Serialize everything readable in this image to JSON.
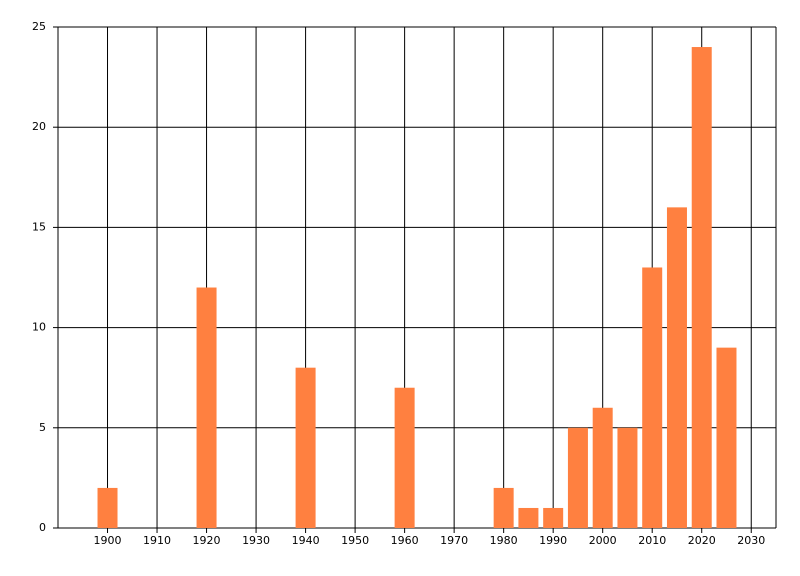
{
  "chart_data": {
    "type": "bar",
    "x": [
      1900,
      1920,
      1940,
      1960,
      1980,
      1985,
      1990,
      1995,
      2000,
      2005,
      2010,
      2015,
      2020,
      2025
    ],
    "values": [
      2,
      12,
      8,
      7,
      2,
      1,
      1,
      5,
      6,
      5,
      13,
      16,
      24,
      9
    ],
    "color": "#ff8040",
    "xlim": [
      1890,
      2035
    ],
    "xticks": [
      1900,
      1910,
      1920,
      1930,
      1940,
      1950,
      1960,
      1970,
      1980,
      1990,
      2000,
      2010,
      2020,
      2030
    ],
    "ylim": [
      0,
      25
    ],
    "yticks": [
      0,
      5,
      10,
      15,
      20,
      25
    ],
    "grid": true
  }
}
